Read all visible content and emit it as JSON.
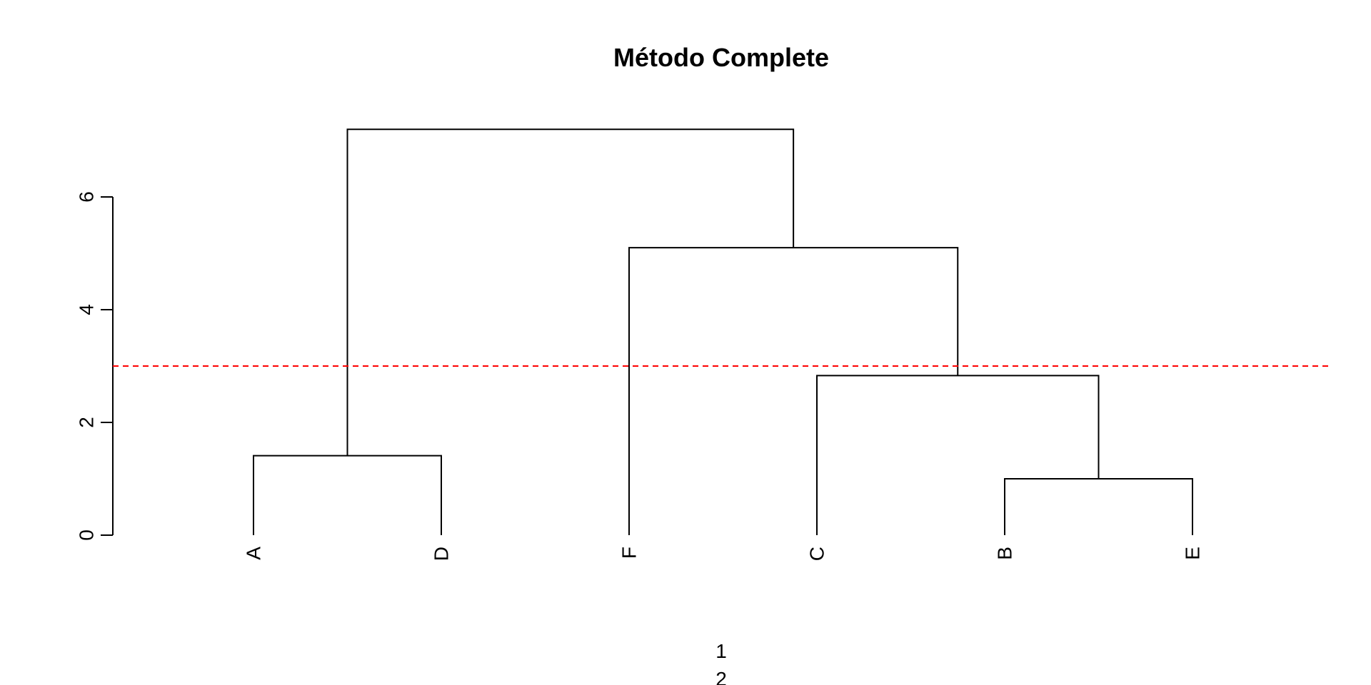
{
  "chart_data": {
    "type": "dendrogram",
    "title": "Método Complete",
    "xlabel_lines": [
      "1",
      "2"
    ],
    "ylabel": "",
    "ylim": [
      0,
      7.2
    ],
    "yticks": [
      0,
      2,
      4,
      6
    ],
    "leaves": [
      "A",
      "D",
      "F",
      "C",
      "B",
      "E"
    ],
    "merges": [
      {
        "left": "B",
        "right": "E",
        "height": 1.0
      },
      {
        "left": "A",
        "right": "D",
        "height": 1.41
      },
      {
        "left": "C",
        "right": "B-E",
        "height": 2.83
      },
      {
        "left": "F",
        "right": "C-B-E",
        "height": 5.1
      },
      {
        "left": "A-D",
        "right": "F-C-B-E",
        "height": 7.2
      }
    ],
    "cut_line": {
      "height": 3,
      "color": "#ff0000",
      "style": "dashed"
    },
    "line_color": "#000000"
  }
}
